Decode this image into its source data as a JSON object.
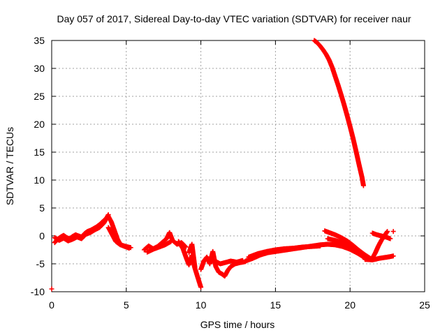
{
  "chart_data": {
    "type": "scatter",
    "title": "Day 057 of 2017, Sidereal Day-to-day VTEC variation (SDTVAR) for receiver naur",
    "xlabel": "GPS time / hours",
    "ylabel": "SDTVAR / TECUs",
    "xlim": [
      0,
      25
    ],
    "ylim": [
      -10,
      35
    ],
    "xticks": [
      "0",
      "5",
      "10",
      "15",
      "20",
      "25"
    ],
    "xtick_values": [
      0,
      5,
      10,
      15,
      20,
      25
    ],
    "yticks": [
      "-10",
      "-5",
      "0",
      "5",
      "10",
      "15",
      "20",
      "25",
      "30",
      "35"
    ],
    "ytick_values": [
      -10,
      -5,
      0,
      5,
      10,
      15,
      20,
      25,
      30,
      35
    ],
    "grid": true,
    "marker": "+",
    "series": [
      {
        "name": "naur",
        "color": "#ff0000",
        "segments": [
          {
            "x": [
              0.0
            ],
            "y": [
              -9.5
            ]
          },
          {
            "x": [
              0.2,
              0.4,
              0.6,
              0.8,
              1.0,
              1.2,
              1.4,
              1.6,
              1.8,
              2.0,
              2.2,
              2.4,
              2.6,
              2.8,
              3.0,
              3.2,
              3.4,
              3.6,
              3.8,
              4.0,
              4.2,
              4.4,
              4.6,
              4.8,
              5.0,
              5.2
            ],
            "y": [
              -1.2,
              -0.6,
              -0.2,
              0.1,
              -0.3,
              -0.5,
              -0.1,
              0.2,
              0.0,
              -0.2,
              0.4,
              0.8,
              1.0,
              1.3,
              1.6,
              2.0,
              2.5,
              3.0,
              3.5,
              2.5,
              1.0,
              -0.5,
              -1.5,
              -1.8,
              -2.0,
              -2.2
            ]
          },
          {
            "x": [
              0.2,
              0.5,
              0.8,
              1.1,
              1.4,
              1.7,
              2.0,
              2.3,
              2.6,
              2.9,
              3.2,
              3.5,
              3.8
            ],
            "y": [
              -0.3,
              -0.8,
              -0.4,
              -0.9,
              -0.6,
              -0.2,
              -0.5,
              0.3,
              0.6,
              1.1,
              1.5,
              2.3,
              3.8
            ]
          },
          {
            "x": [
              3.8,
              4.0,
              4.3,
              4.6,
              5.0,
              5.3
            ],
            "y": [
              1.5,
              0.5,
              -1.0,
              -1.6,
              -1.9,
              -2.1
            ]
          },
          {
            "x": [
              6.2,
              6.5,
              6.8,
              7.1,
              7.4,
              7.7,
              7.9,
              8.1,
              8.4,
              8.7,
              9.0
            ],
            "y": [
              -2.5,
              -1.8,
              -2.3,
              -1.9,
              -1.2,
              -0.5,
              0.6,
              -0.8,
              -1.5,
              -1.2,
              -2.0
            ]
          },
          {
            "x": [
              6.4,
              6.8,
              7.2,
              7.6,
              8.0
            ],
            "y": [
              -2.9,
              -2.4,
              -2.0,
              -1.6,
              -1.0
            ]
          },
          {
            "x": [
              8.5,
              8.8,
              9.0,
              9.2,
              9.4,
              9.6,
              9.8,
              10.0
            ],
            "y": [
              -1.0,
              -2.3,
              -3.8,
              -5.2,
              -3.5,
              -5.8,
              -7.5,
              -9.2
            ]
          },
          {
            "x": [
              9.2,
              9.4,
              9.6
            ],
            "y": [
              -3.0,
              -1.5,
              -5.6
            ]
          },
          {
            "x": [
              10.0,
              10.2,
              10.4,
              10.6,
              10.8,
              11.0,
              11.2,
              11.4,
              11.6,
              11.8,
              12.0,
              12.3,
              12.6,
              13.0
            ],
            "y": [
              -6.0,
              -4.5,
              -3.8,
              -5.0,
              -2.8,
              -5.5,
              -6.5,
              -6.8,
              -7.2,
              -6.2,
              -5.5,
              -5.0,
              -4.8,
              -4.6
            ]
          },
          {
            "x": [
              10.4,
              10.7,
              11.0,
              11.3,
              11.6,
              12.0,
              12.4,
              12.8
            ],
            "y": [
              -4.0,
              -4.3,
              -4.6,
              -5.0,
              -4.8,
              -4.5,
              -4.7,
              -4.4
            ]
          },
          {
            "x": [
              13.0,
              13.5,
              14.0,
              14.5,
              15.0,
              15.5,
              16.0,
              16.5,
              17.0,
              17.5,
              18.0,
              18.5,
              19.0,
              19.5,
              20.0,
              20.5,
              20.8,
              21.0
            ],
            "y": [
              -4.5,
              -4.0,
              -3.4,
              -3.0,
              -2.8,
              -2.6,
              -2.4,
              -2.2,
              -2.0,
              -1.8,
              -1.6,
              -1.5,
              -1.6,
              -1.9,
              -2.4,
              -3.1,
              -3.6,
              -4.0
            ]
          },
          {
            "x": [
              13.2,
              13.8,
              14.4,
              15.0,
              15.6,
              16.2,
              16.8,
              17.4,
              18.0
            ],
            "y": [
              -3.8,
              -3.2,
              -2.8,
              -2.5,
              -2.3,
              -2.2,
              -2.0,
              -1.9,
              -1.8
            ]
          },
          {
            "x": [
              18.3,
              18.6,
              19.0,
              19.4,
              19.8,
              20.2,
              20.6,
              21.0,
              21.4
            ],
            "y": [
              0.9,
              0.6,
              0.2,
              -0.3,
              -0.9,
              -1.7,
              -2.6,
              -3.4,
              -4.1
            ]
          },
          {
            "x": [
              18.5,
              19.0,
              19.5,
              20.0,
              20.5,
              21.0
            ],
            "y": [
              -0.5,
              -0.8,
              -1.2,
              -1.8,
              -2.7,
              -3.5
            ]
          },
          {
            "x": [
              21.0,
              21.5,
              22.0,
              22.5,
              22.9
            ],
            "y": [
              -4.2,
              -4.3,
              -4.0,
              -3.8,
              -3.6
            ]
          },
          {
            "x": [
              21.5,
              21.7,
              21.9,
              22.1,
              22.3,
              22.5
            ],
            "y": [
              -4.0,
              -3.0,
              -1.8,
              -0.8,
              0.0,
              0.8
            ]
          },
          {
            "x": [
              21.5,
              21.8,
              22.1,
              22.4,
              22.7
            ],
            "y": [
              0.5,
              0.2,
              0.0,
              -0.2,
              -0.5
            ]
          },
          {
            "x": [
              22.9
            ],
            "y": [
              0.8
            ]
          },
          {
            "x": [
              17.6,
              17.8,
              18.0,
              18.2,
              18.4,
              18.6,
              18.8,
              19.0,
              19.2,
              19.4,
              19.6,
              19.8,
              20.0,
              20.2,
              20.4,
              20.6,
              20.8,
              20.9
            ],
            "y": [
              35.0,
              34.6,
              34.0,
              33.3,
              32.5,
              31.5,
              30.2,
              28.6,
              27.0,
              25.3,
              23.5,
              21.6,
              19.6,
              17.5,
              15.2,
              12.8,
              10.5,
              9.0
            ]
          }
        ]
      }
    ]
  }
}
